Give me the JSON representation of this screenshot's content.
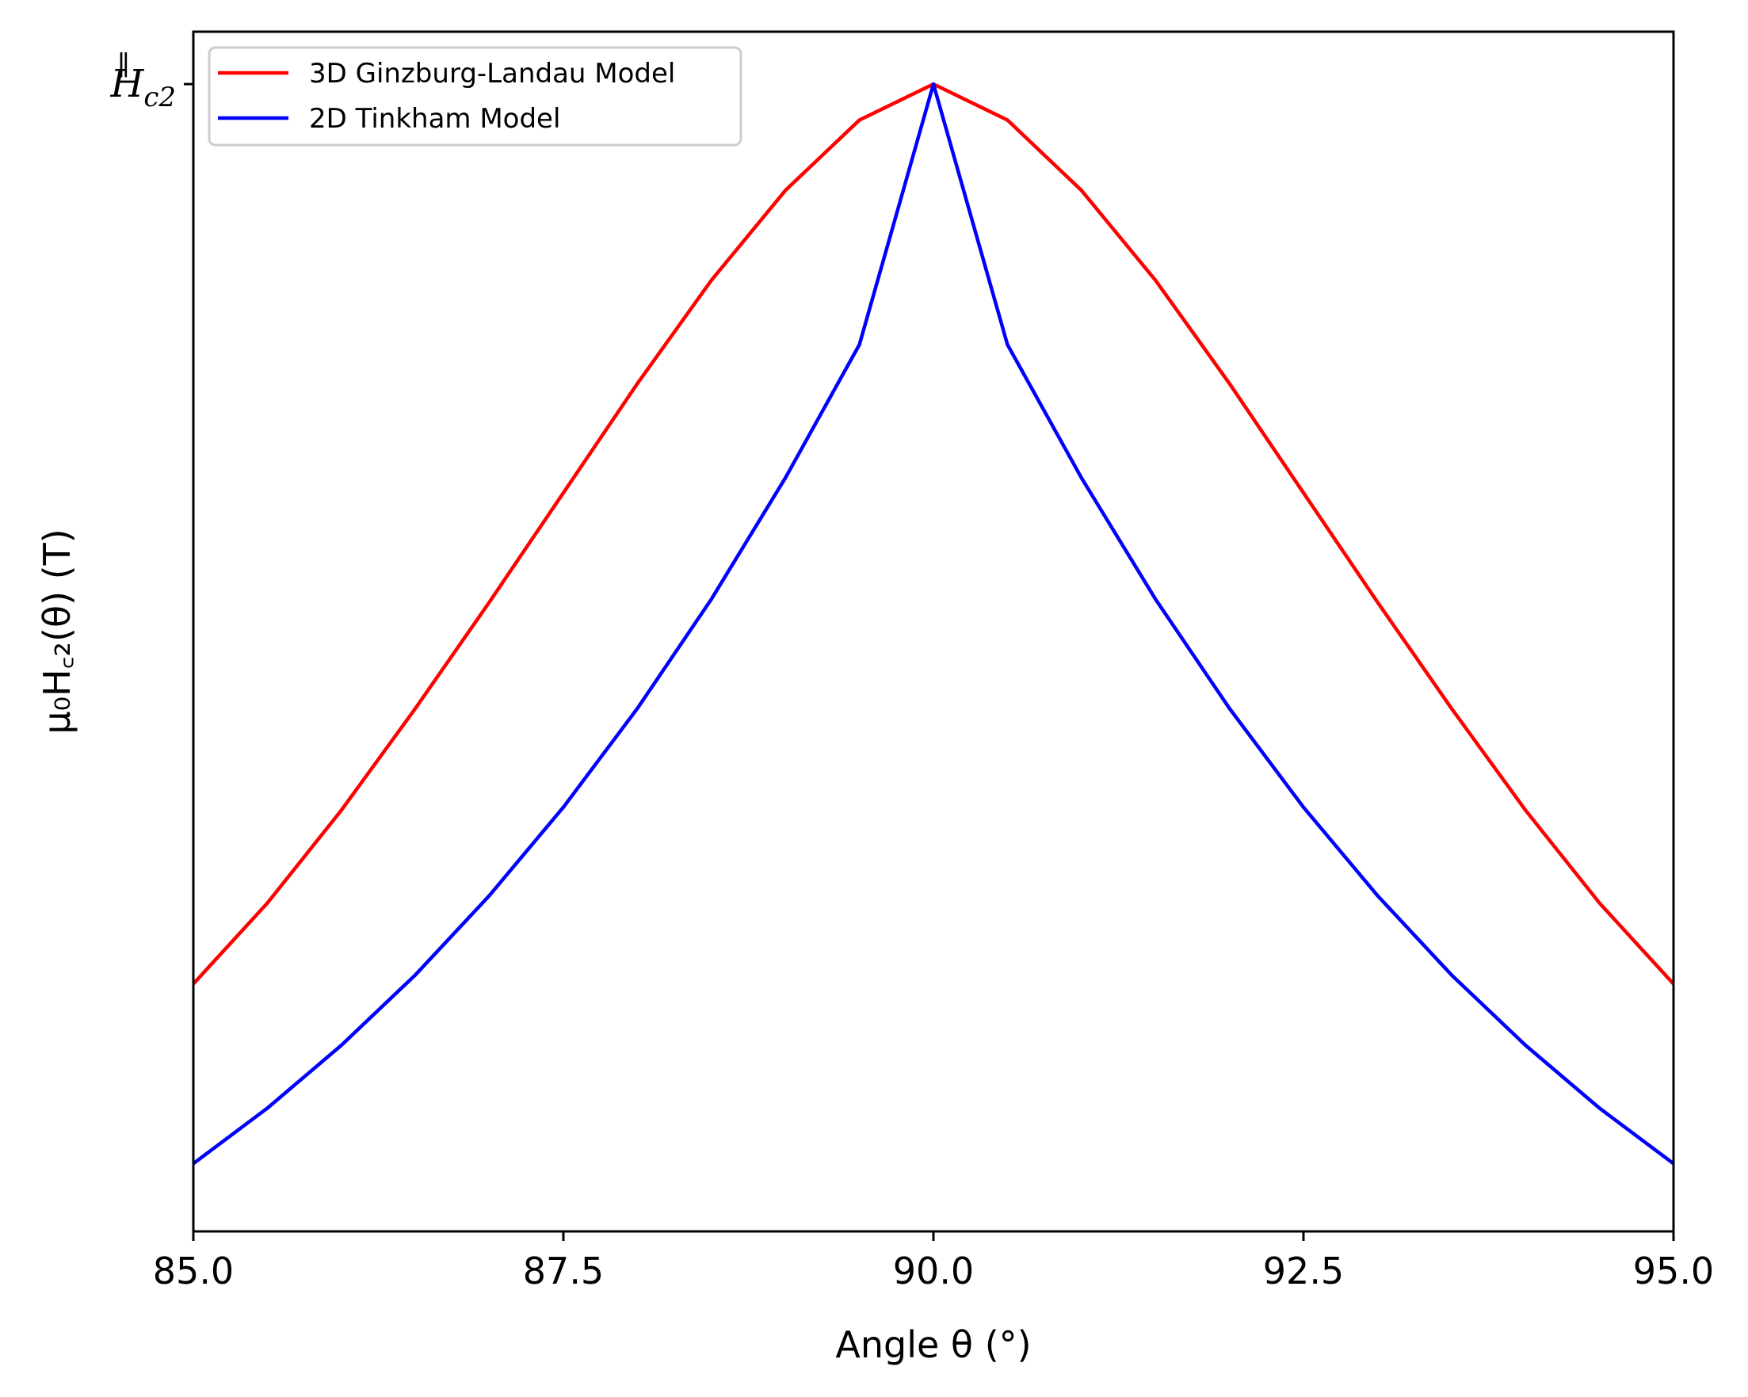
{
  "chart_data": {
    "type": "line",
    "xlabel": "Angle θ (°)",
    "ylabel": "μ₀H꜀₂(θ) (T)",
    "xlim": [
      85.0,
      95.0
    ],
    "ylim": [
      0.2337,
      1.035
    ],
    "x_ticks": [
      "85.0",
      "87.5",
      "90.0",
      "92.5",
      "95.0"
    ],
    "x_tick_values": [
      85.0,
      87.5,
      90.0,
      92.5,
      95.0
    ],
    "y_ticks": [
      {
        "value": 1.0,
        "label_main": "H",
        "label_sup": "∥",
        "label_sub": "c2"
      }
    ],
    "grid": false,
    "legend_position": "upper-left",
    "series": [
      {
        "name": "3D Ginzburg-Landau Model",
        "color": "#ff0000",
        "x": [
          85,
          85.5,
          86,
          86.5,
          87,
          87.5,
          88,
          88.5,
          89,
          89.5,
          90,
          90.5,
          91,
          91.5,
          92,
          92.5,
          93,
          93.5,
          94,
          94.5,
          95
        ],
        "y": [
          0.399,
          0.453,
          0.515,
          0.583,
          0.654,
          0.727,
          0.8,
          0.869,
          0.929,
          0.976,
          1.0,
          0.976,
          0.929,
          0.869,
          0.8,
          0.727,
          0.654,
          0.583,
          0.515,
          0.453,
          0.399
        ]
      },
      {
        "name": "2D Tinkham Model",
        "color": "#0000ff",
        "x": [
          85,
          85.5,
          86,
          86.5,
          87,
          87.5,
          88,
          88.5,
          89,
          89.5,
          90,
          90.5,
          91,
          91.5,
          92,
          92.5,
          93,
          93.5,
          94,
          94.5,
          95
        ],
        "y": [
          0.279,
          0.316,
          0.358,
          0.405,
          0.458,
          0.517,
          0.583,
          0.656,
          0.737,
          0.826,
          1.0,
          0.826,
          0.737,
          0.656,
          0.583,
          0.517,
          0.458,
          0.405,
          0.358,
          0.316,
          0.279
        ]
      }
    ]
  }
}
